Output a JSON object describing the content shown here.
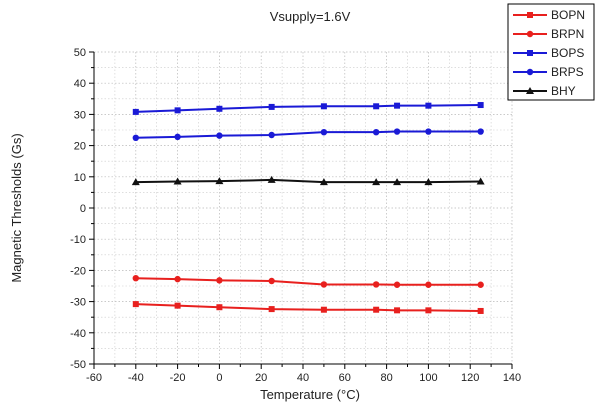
{
  "chart_data": {
    "type": "line",
    "title": "Vsupply=1.6V",
    "xlabel": "Temperature (°C)",
    "ylabel": "Magnetic Thresholds (Gs)",
    "xlim": [
      -60,
      140
    ],
    "ylim": [
      -50,
      50
    ],
    "xticks": [
      -60,
      -40,
      -20,
      0,
      20,
      40,
      60,
      80,
      100,
      120,
      140
    ],
    "yticks": [
      -50,
      -40,
      -30,
      -20,
      -10,
      0,
      10,
      20,
      30,
      40,
      50
    ],
    "xtick_labels": [
      "-60",
      "-40",
      "-20",
      "0",
      "20",
      "40",
      "60",
      "80",
      "100",
      "120",
      "140"
    ],
    "ytick_labels": [
      "-50",
      "-40",
      "-30",
      "-20",
      "-10",
      "0",
      "10",
      "20",
      "30",
      "40",
      "50"
    ],
    "grid": true,
    "legend_position": "top-right",
    "x": [
      -40,
      -20,
      0,
      25,
      50,
      75,
      85,
      100,
      125
    ],
    "series": [
      {
        "name": "BOPN",
        "color": "#e8201e",
        "marker": "square",
        "values": [
          -30.8,
          -31.3,
          -31.8,
          -32.4,
          -32.6,
          -32.6,
          -32.8,
          -32.8,
          -33.0
        ]
      },
      {
        "name": "BRPN",
        "color": "#e8201e",
        "marker": "circle",
        "values": [
          -22.5,
          -22.8,
          -23.2,
          -23.4,
          -24.5,
          -24.5,
          -24.6,
          -24.6,
          -24.6
        ]
      },
      {
        "name": "BOPS",
        "color": "#1a1ad6",
        "marker": "square",
        "values": [
          30.8,
          31.3,
          31.8,
          32.4,
          32.6,
          32.6,
          32.8,
          32.8,
          33.0
        ]
      },
      {
        "name": "BRPS",
        "color": "#1a1ad6",
        "marker": "circle",
        "values": [
          22.5,
          22.8,
          23.2,
          23.4,
          24.3,
          24.3,
          24.5,
          24.5,
          24.5
        ]
      },
      {
        "name": "BHY",
        "color": "#111111",
        "marker": "triangle",
        "values": [
          8.3,
          8.5,
          8.6,
          9.0,
          8.3,
          8.3,
          8.3,
          8.3,
          8.5
        ]
      }
    ]
  }
}
